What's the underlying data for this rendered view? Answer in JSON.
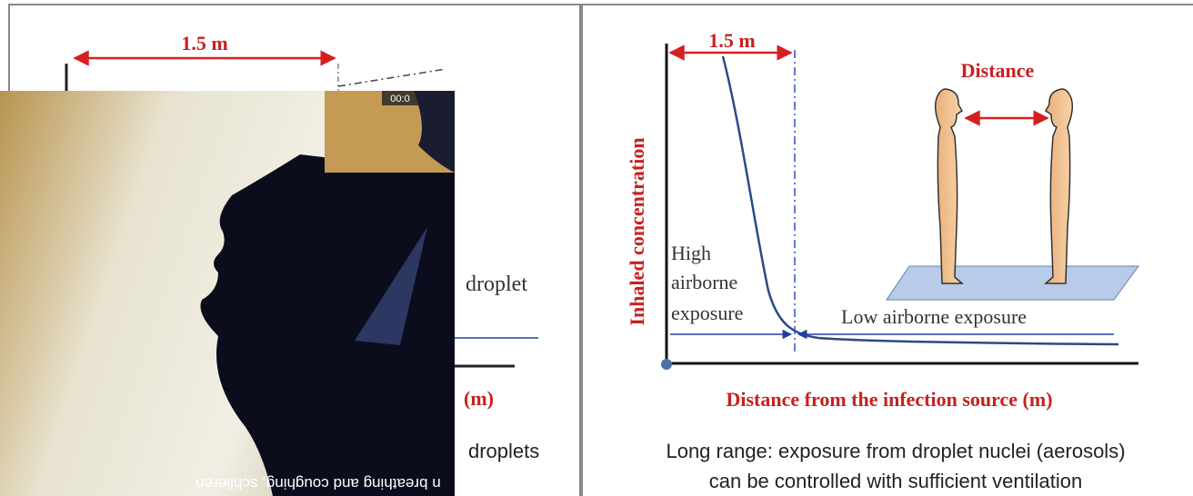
{
  "left_panel": {
    "distance_label": "1.5 m",
    "droplet_text": "droplet",
    "axis_fragment": "(m)",
    "caption_fragment": "droplets"
  },
  "video": {
    "timestamp": "00:0",
    "caption": "n breathing and coughing, schlieren"
  },
  "right_panel": {
    "distance_label": "1.5 m",
    "figure_label": "Distance",
    "y_axis_label": "Inhaled concentration",
    "high_label": [
      "High",
      "airborne",
      "exposure"
    ],
    "low_label": "Low airborne exposure",
    "x_axis_label": "Distance from the infection source (m)",
    "caption": [
      "Long range: exposure from droplet nuclei (aerosols)",
      "can be controlled with sufficient ventilation"
    ]
  }
}
